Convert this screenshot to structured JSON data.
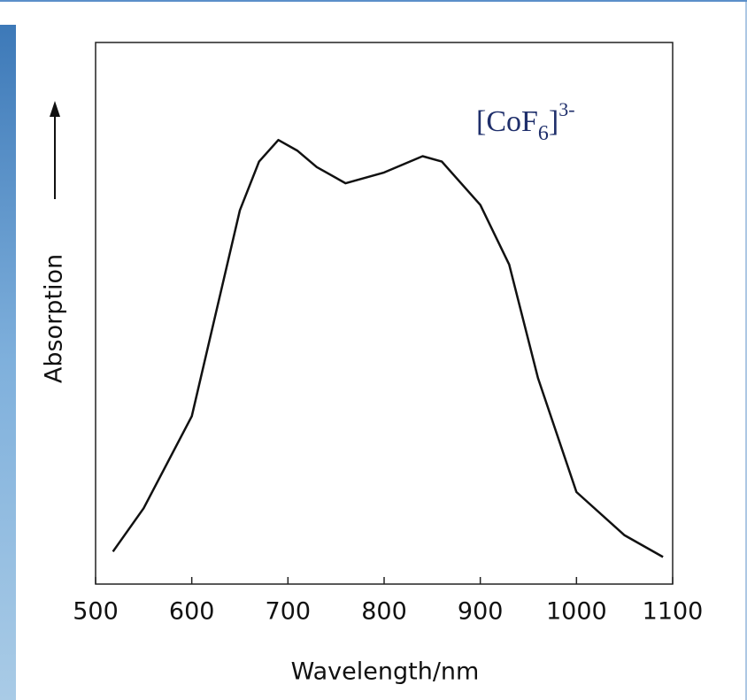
{
  "chart_data": {
    "type": "line",
    "x_label": "Wavelength/nm",
    "y_label": "Absorption",
    "annotation": {
      "base": "[CoF",
      "sub": "6",
      "mid": "]",
      "sup": "3-"
    },
    "x": [
      518,
      550,
      600,
      650,
      670,
      690,
      710,
      730,
      760,
      800,
      840,
      860,
      900,
      930,
      960,
      1000,
      1050,
      1090
    ],
    "series": [
      {
        "color": "#111111",
        "values": [
          0.06,
          0.14,
          0.31,
          0.69,
          0.78,
          0.82,
          0.8,
          0.77,
          0.74,
          0.76,
          0.79,
          0.78,
          0.7,
          0.59,
          0.38,
          0.17,
          0.09,
          0.05
        ]
      }
    ],
    "xlim": [
      500,
      1100
    ],
    "xticks": [
      500,
      600,
      700,
      800,
      900,
      1000,
      1100
    ],
    "ylim": [
      0,
      1
    ]
  }
}
